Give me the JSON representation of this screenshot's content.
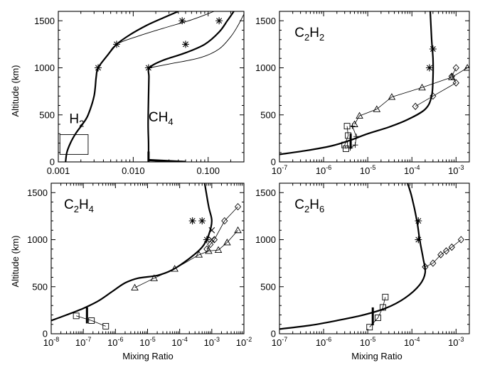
{
  "figure": {
    "ylabel_left": "Altitude (km)",
    "xlabel_bottom": "Mixing Ratio"
  },
  "chart_data": [
    {
      "id": "panel-h2-ch4",
      "type": "line",
      "xscale": "log",
      "xlim": [
        0.001,
        0.3
      ],
      "ylim": [
        0,
        1600
      ],
      "xticks": [
        0.001,
        0.01,
        0.1
      ],
      "xticklabels": [
        "0.001",
        "0.010",
        "0.100"
      ],
      "yticks": [
        0,
        500,
        1000,
        1500
      ],
      "yticklabels": [
        "0",
        "500",
        "1000",
        "1500"
      ],
      "labels": [
        {
          "text": "H",
          "sub": "2",
          "x": 0.0014,
          "y": 410
        },
        {
          "text": "CH",
          "sub": "4",
          "x": 0.016,
          "y": 430
        }
      ],
      "series": [
        {
          "name": "H2 model",
          "style": "thick",
          "points": [
            [
              0.00125,
              0
            ],
            [
              0.0013,
              100
            ],
            [
              0.00145,
              200
            ],
            [
              0.0017,
              300
            ],
            [
              0.0021,
              400
            ],
            [
              0.0025,
              500
            ],
            [
              0.003,
              700
            ],
            [
              0.0032,
              900
            ],
            [
              0.0034,
              1000
            ],
            [
              0.0045,
              1130
            ],
            [
              0.006,
              1250
            ],
            [
              0.009,
              1350
            ],
            [
              0.015,
              1450
            ],
            [
              0.025,
              1530
            ],
            [
              0.04,
              1600
            ]
          ]
        },
        {
          "name": "H2 alt model",
          "style": "thin",
          "points": [
            [
              0.0034,
              1000
            ],
            [
              0.0045,
              1130
            ],
            [
              0.006,
              1250
            ],
            [
              0.012,
              1340
            ],
            [
              0.025,
              1420
            ],
            [
              0.06,
              1510
            ],
            [
              0.12,
              1600
            ]
          ]
        },
        {
          "name": "CH4 model",
          "style": "thick",
          "points": [
            [
              0.016,
              0
            ],
            [
              0.016,
              200
            ],
            [
              0.0158,
              400
            ],
            [
              0.016,
              700
            ],
            [
              0.0162,
              900
            ],
            [
              0.0165,
              1000
            ],
            [
              0.025,
              1080
            ],
            [
              0.05,
              1160
            ],
            [
              0.09,
              1250
            ],
            [
              0.14,
              1380
            ],
            [
              0.18,
              1500
            ],
            [
              0.22,
              1600
            ]
          ]
        },
        {
          "name": "CH4 alt model",
          "style": "thin",
          "points": [
            [
              0.0165,
              1000
            ],
            [
              0.03,
              1040
            ],
            [
              0.08,
              1110
            ],
            [
              0.14,
              1200
            ],
            [
              0.2,
              1330
            ],
            [
              0.25,
              1450
            ],
            [
              0.3,
              1570
            ]
          ]
        },
        {
          "name": "CH4 surface",
          "style": "bar",
          "points": [
            [
              0.016,
              20
            ],
            [
              0.05,
              0
            ]
          ]
        },
        {
          "name": "CH4 base",
          "style": "bar",
          "points": [
            [
              0.016,
              0
            ],
            [
              0.016,
              110
            ]
          ]
        },
        {
          "name": "H2 stars",
          "marker": "star",
          "style": "none",
          "points": [
            [
              0.0034,
              1000
            ],
            [
              0.006,
              1250
            ]
          ]
        },
        {
          "name": "CH4 stars",
          "marker": "star",
          "style": "none",
          "points": [
            [
              0.016,
              1000
            ],
            [
              0.05,
              1250
            ],
            [
              0.14,
              1500
            ],
            [
              0.045,
              1500
            ]
          ]
        }
      ],
      "box": {
        "x": [
          0.00105,
          0.0025
        ],
        "y": [
          80,
          290
        ]
      }
    },
    {
      "id": "panel-c2h2",
      "type": "line",
      "xscale": "log",
      "xlim": [
        1e-07,
        0.002
      ],
      "ylim": [
        0,
        1600
      ],
      "xticks": [
        1e-07,
        1e-06,
        1e-05,
        0.0001,
        0.001
      ],
      "xticklabels": [
        "10^-7",
        "10^-6",
        "10^-5",
        "10^-4",
        "10^-3"
      ],
      "yticks": [
        0,
        500,
        1000,
        1500
      ],
      "yticklabels": [
        "0",
        "500",
        "1000",
        "1500"
      ],
      "labels": [
        {
          "text": "C",
          "sub": "2",
          "text2": "H",
          "sub2": "2",
          "x": 2.2e-07,
          "y": 1330
        }
      ],
      "series": [
        {
          "name": "C2H2 model",
          "style": "thick",
          "points": [
            [
              1e-07,
              80
            ],
            [
              4e-07,
              120
            ],
            [
              1.5e-06,
              170
            ],
            [
              4e-06,
              230
            ],
            [
              1e-05,
              300
            ],
            [
              3e-05,
              370
            ],
            [
              8e-05,
              450
            ],
            [
              0.0002,
              560
            ],
            [
              0.00028,
              700
            ],
            [
              0.0003,
              900
            ],
            [
              0.0003,
              1100
            ],
            [
              0.00028,
              1300
            ],
            [
              0.00026,
              1600
            ]
          ]
        },
        {
          "name": "C2H2 obs triangles",
          "marker": "triangle",
          "style": "line",
          "points": [
            [
              5e-06,
              400
            ],
            [
              6.5e-06,
              490
            ],
            [
              1.6e-05,
              560
            ],
            [
              3.5e-05,
              690
            ],
            [
              0.00017,
              790
            ],
            [
              0.0008,
              900
            ],
            [
              0.0018,
              1000
            ]
          ]
        },
        {
          "name": "C2H2 obs diamonds",
          "marker": "diamond",
          "style": "line",
          "points": [
            [
              0.00012,
              590
            ],
            [
              0.0003,
              700
            ],
            [
              0.001,
              840
            ],
            [
              0.0008,
              910
            ],
            [
              0.001,
              1000
            ]
          ]
        },
        {
          "name": "C2H2 obs squares",
          "marker": "square",
          "style": "line",
          "points": [
            [
              3.4e-06,
              380
            ],
            [
              3.6e-06,
              280
            ],
            [
              3e-06,
              180
            ],
            [
              3.2e-06,
              140
            ]
          ]
        },
        {
          "name": "C2H2 obs plus",
          "marker": "plus",
          "style": "line",
          "points": [
            [
              4.5e-06,
              380
            ],
            [
              5.5e-06,
              270
            ],
            [
              5.2e-06,
              180
            ],
            [
              4e-06,
              150
            ]
          ]
        },
        {
          "name": "C2H2 bar",
          "style": "bar",
          "points": [
            [
              4.1e-06,
              140
            ],
            [
              4.1e-06,
              300
            ]
          ]
        },
        {
          "name": "C2H2 stars",
          "marker": "star",
          "style": "none",
          "points": [
            [
              0.0003,
              1200
            ],
            [
              0.00025,
              1000
            ]
          ]
        }
      ]
    },
    {
      "id": "panel-c2h4",
      "type": "line",
      "xscale": "log",
      "xlim": [
        1e-08,
        0.01
      ],
      "ylim": [
        0,
        1600
      ],
      "xticks": [
        1e-08,
        1e-07,
        1e-06,
        1e-05,
        0.0001,
        0.001,
        0.01
      ],
      "xticklabels": [
        "10^-8",
        "10^-7",
        "10^-6",
        "10^-5",
        "10^-4",
        "10^-3",
        "10^-2"
      ],
      "yticks": [
        0,
        500,
        1000,
        1500
      ],
      "yticklabels": [
        "0",
        "500",
        "1000",
        "1500"
      ],
      "labels": [
        {
          "text": "C",
          "sub": "2",
          "text2": "H",
          "sub2": "4",
          "x": 2.5e-08,
          "y": 1330
        }
      ],
      "series": [
        {
          "name": "C2H4 model",
          "style": "thick",
          "points": [
            [
              1e-08,
              140
            ],
            [
              3e-08,
              200
            ],
            [
              1e-07,
              270
            ],
            [
              3e-07,
              350
            ],
            [
              8e-07,
              450
            ],
            [
              2e-06,
              540
            ],
            [
              5e-06,
              590
            ],
            [
              2e-05,
              620
            ],
            [
              6e-05,
              680
            ],
            [
              0.0002,
              800
            ],
            [
              0.0005,
              920
            ],
            [
              0.0008,
              1050
            ],
            [
              0.001,
              1200
            ],
            [
              0.0008,
              1350
            ],
            [
              0.0006,
              1600
            ]
          ]
        },
        {
          "name": "C2H4 obs triangles",
          "marker": "triangle",
          "style": "line",
          "points": [
            [
              4e-06,
              490
            ],
            [
              1.6e-05,
              590
            ],
            [
              7e-05,
              690
            ],
            [
              0.0004,
              840
            ],
            [
              0.0008,
              880
            ],
            [
              0.0016,
              890
            ],
            [
              0.003,
              970
            ],
            [
              0.0065,
              1100
            ]
          ]
        },
        {
          "name": "C2H4 obs diamonds",
          "marker": "diamond",
          "style": "line",
          "points": [
            [
              0.0007,
              900
            ],
            [
              0.0009,
              950
            ],
            [
              0.0012,
              1000
            ],
            [
              0.0025,
              1200
            ],
            [
              0.0065,
              1350
            ]
          ]
        },
        {
          "name": "C2H4 obs squares",
          "marker": "square",
          "style": "line",
          "points": [
            [
              6e-08,
              190
            ],
            [
              1.8e-07,
              140
            ],
            [
              5e-07,
              80
            ]
          ]
        },
        {
          "name": "C2H4 bar",
          "style": "bar",
          "points": [
            [
              1.3e-07,
              110
            ],
            [
              1.3e-07,
              280
            ]
          ]
        },
        {
          "name": "C2H4 stars",
          "marker": "star",
          "style": "none",
          "points": [
            [
              0.00025,
              1200
            ],
            [
              0.0005,
              1200
            ],
            [
              0.0007,
              1000
            ]
          ]
        },
        {
          "name": "C2H4 crosses",
          "marker": "cross",
          "style": "none",
          "points": [
            [
              0.001,
              1100
            ],
            [
              0.001,
              1000
            ]
          ]
        }
      ]
    },
    {
      "id": "panel-c2h6",
      "type": "line",
      "xscale": "log",
      "xlim": [
        1e-07,
        0.002
      ],
      "ylim": [
        0,
        1600
      ],
      "xticks": [
        1e-07,
        1e-06,
        1e-05,
        0.0001,
        0.001
      ],
      "xticklabels": [
        "10^-7",
        "10^-6",
        "10^-5",
        "10^-4",
        "10^-3"
      ],
      "yticks": [
        0,
        500,
        1000,
        1500
      ],
      "yticklabels": [
        "0",
        "500",
        "1000",
        "1500"
      ],
      "labels": [
        {
          "text": "C",
          "sub": "2",
          "text2": "H",
          "sub2": "6",
          "x": 2.2e-07,
          "y": 1330
        }
      ],
      "series": [
        {
          "name": "C2H6 model",
          "style": "thick",
          "points": [
            [
              1e-07,
              50
            ],
            [
              5e-07,
              90
            ],
            [
              2e-06,
              140
            ],
            [
              8e-06,
              200
            ],
            [
              2.5e-05,
              270
            ],
            [
              7e-05,
              380
            ],
            [
              0.00015,
              520
            ],
            [
              0.0002,
              650
            ],
            [
              0.00018,
              800
            ],
            [
              0.00015,
              1000
            ],
            [
              0.00013,
              1200
            ],
            [
              0.0001,
              1450
            ],
            [
              8e-05,
              1600
            ]
          ]
        },
        {
          "name": "C2H6 obs diamonds",
          "marker": "diamond",
          "style": "line",
          "points": [
            [
              0.0002,
              710
            ],
            [
              0.0003,
              750
            ],
            [
              0.00045,
              840
            ],
            [
              0.0006,
              880
            ],
            [
              0.0008,
              920
            ],
            [
              0.0013,
              1000
            ]
          ]
        },
        {
          "name": "C2H6 obs squares",
          "marker": "square",
          "style": "line",
          "points": [
            [
              1.1e-05,
              70
            ],
            [
              1.7e-05,
              170
            ],
            [
              2.2e-05,
              280
            ],
            [
              2.5e-05,
              390
            ]
          ]
        },
        {
          "name": "C2H6 bar",
          "style": "bar",
          "points": [
            [
              1.3e-05,
              90
            ],
            [
              1.3e-05,
              280
            ]
          ]
        },
        {
          "name": "C2H6 stars",
          "marker": "star",
          "style": "none",
          "points": [
            [
              0.00014,
              1200
            ],
            [
              0.00014,
              1000
            ]
          ]
        }
      ]
    }
  ]
}
